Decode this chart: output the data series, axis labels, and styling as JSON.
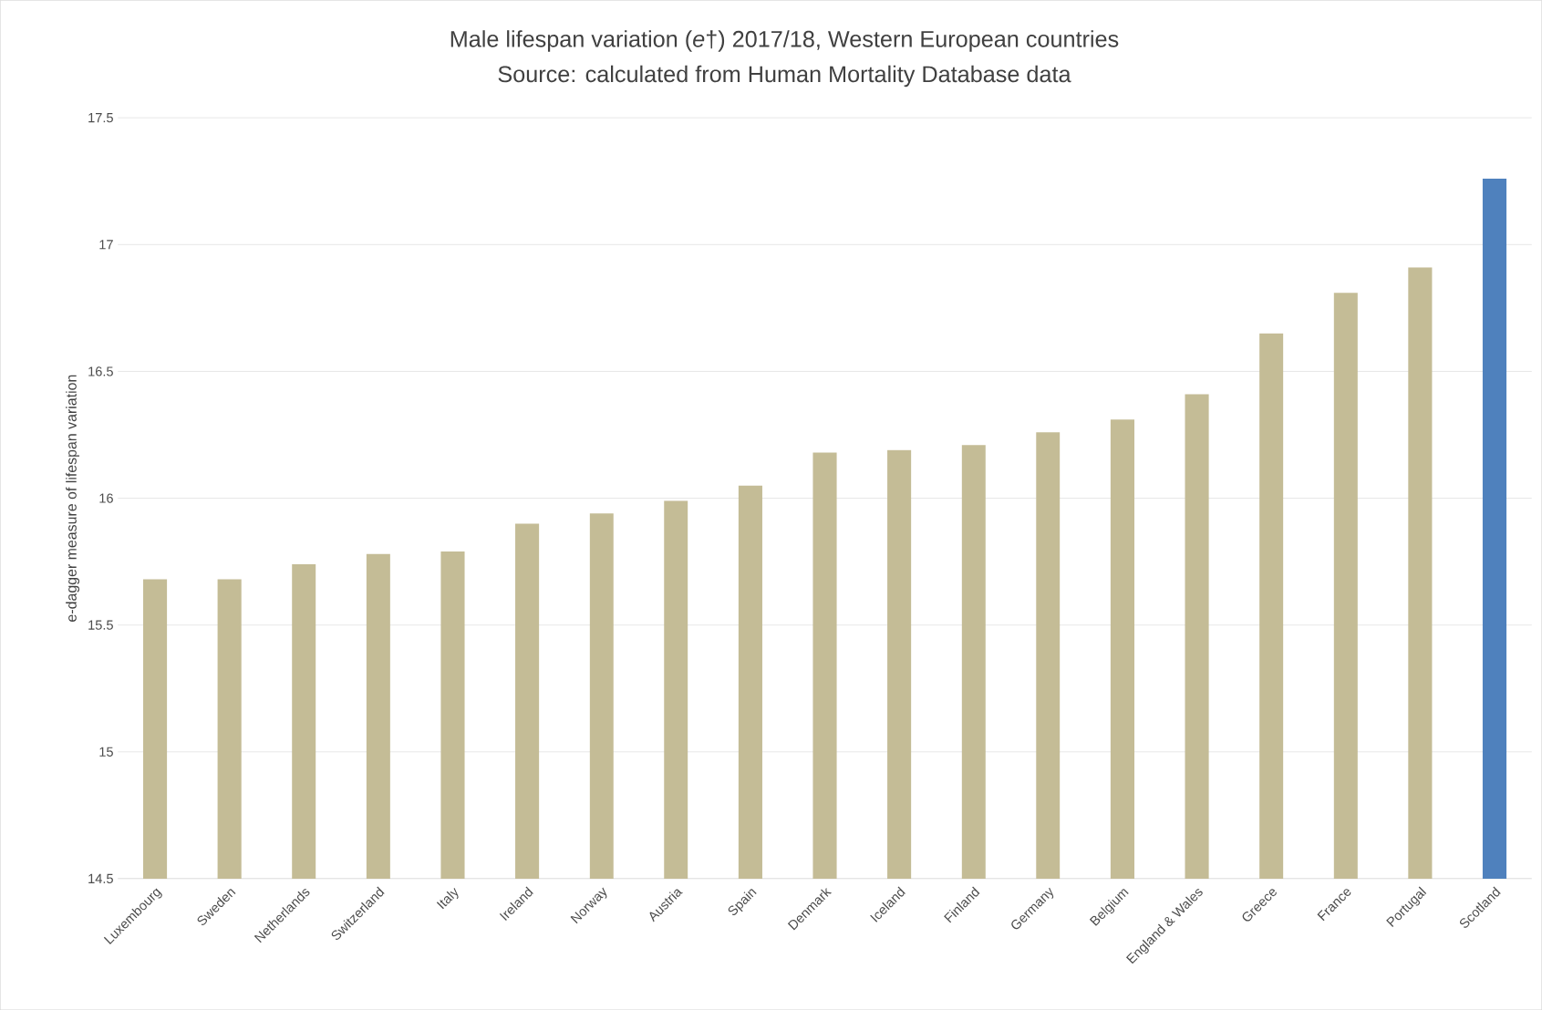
{
  "chart_data": {
    "type": "bar",
    "title": "Male lifespan variation (*e*†) 2017/18, Western European countries",
    "subtitle": "Source: calculated from Human Mortality Database data",
    "ylabel": "e-dagger measure of lifespan variation",
    "categories": [
      "Luxembourg",
      "Sweden",
      "Netherlands",
      "Switzerland",
      "Italy",
      "Ireland",
      "Norway",
      "Austria",
      "Spain",
      "Denmark",
      "Iceland",
      "Finland",
      "Germany",
      "Belgium",
      "England & Wales",
      "Greece",
      "France",
      "Portugal",
      "Scotland"
    ],
    "values": [
      15.68,
      15.68,
      15.74,
      15.78,
      15.79,
      15.9,
      15.94,
      15.99,
      16.05,
      16.18,
      16.19,
      16.21,
      16.26,
      16.31,
      16.41,
      16.65,
      16.81,
      16.91,
      17.26
    ],
    "colors": [
      "#c4bc96",
      "#c4bc96",
      "#c4bc96",
      "#c4bc96",
      "#c4bc96",
      "#c4bc96",
      "#c4bc96",
      "#c4bc96",
      "#c4bc96",
      "#c4bc96",
      "#c4bc96",
      "#c4bc96",
      "#c4bc96",
      "#c4bc96",
      "#c4bc96",
      "#c4bc96",
      "#c4bc96",
      "#c4bc96",
      "#4f81bd"
    ],
    "ylim": [
      14.5,
      17.5
    ],
    "yticks": [
      14.5,
      15,
      15.5,
      16,
      16.5,
      17,
      17.5
    ],
    "grid": "y"
  }
}
